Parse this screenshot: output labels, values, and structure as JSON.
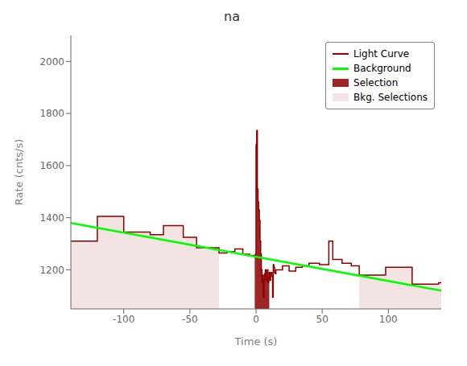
{
  "chart_data": {
    "type": "line",
    "title": "na",
    "xlabel": "Time (s)",
    "ylabel": "Rate (cnts/s)",
    "xlim": [
      -140,
      140
    ],
    "ylim": [
      1050,
      2100
    ],
    "xticks": [
      -100,
      -50,
      0,
      50,
      100
    ],
    "yticks": [
      1200,
      1400,
      1600,
      1800,
      2000
    ],
    "grid": false,
    "legend": "upper right",
    "series": [
      {
        "name": "Light Curve",
        "type": "step",
        "color": "#8B0000",
        "parts": [
          {
            "segments": [
              {
                "x1": -140,
                "x2": -120,
                "y": 1310
              },
              {
                "x1": -120,
                "x2": -100,
                "y": 1405
              },
              {
                "x1": -100,
                "x2": -80,
                "y": 1345
              },
              {
                "x1": -80,
                "x2": -70,
                "y": 1335
              },
              {
                "x1": -70,
                "x2": -55,
                "y": 1370
              },
              {
                "x1": -55,
                "x2": -45,
                "y": 1325
              },
              {
                "x1": -45,
                "x2": -28,
                "y": 1285
              },
              {
                "x1": -28,
                "x2": -22,
                "y": 1265
              },
              {
                "x1": -22,
                "x2": -16,
                "y": 1270
              },
              {
                "x1": -16,
                "x2": -10,
                "y": 1280
              },
              {
                "x1": -10,
                "x2": -5,
                "y": 1260
              },
              {
                "x1": -5,
                "x2": -1,
                "y": 1255
              }
            ]
          },
          {
            "x": [
              -1.0,
              -0.5,
              0.0,
              0.5,
              1.0,
              1.5,
              2.0,
              2.5,
              3.0,
              3.5,
              4.0,
              4.5,
              5.0,
              5.5,
              6.0,
              6.5,
              7.0,
              7.5,
              8.0,
              8.5,
              9.0,
              9.5,
              10.0,
              10.5,
              11.0,
              11.5,
              12.0,
              12.5,
              13.0,
              13.5,
              14.0,
              14.5,
              15.0
            ],
            "values": [
              1255,
              1260,
              1680,
              1735,
              1510,
              1460,
              1430,
              1390,
              1310,
              1260,
              1200,
              1150,
              1180,
              1095,
              1160,
              1185,
              1200,
              1175,
              1160,
              1200,
              1150,
              1170,
              1190,
              1160,
              1185,
              1190,
              1175,
              1095,
              1220,
              1210,
              1190,
              1185,
              1185
            ]
          },
          {
            "segments": [
              {
                "x1": 15,
                "x2": 20,
                "y": 1200
              },
              {
                "x1": 20,
                "x2": 25,
                "y": 1215
              },
              {
                "x1": 25,
                "x2": 30,
                "y": 1195
              },
              {
                "x1": 30,
                "x2": 35,
                "y": 1210
              },
              {
                "x1": 35,
                "x2": 40,
                "y": 1215
              },
              {
                "x1": 40,
                "x2": 48,
                "y": 1225
              },
              {
                "x1": 48,
                "x2": 55,
                "y": 1220
              },
              {
                "x1": 55,
                "x2": 58,
                "y": 1310
              },
              {
                "x1": 58,
                "x2": 65,
                "y": 1240
              },
              {
                "x1": 65,
                "x2": 72,
                "y": 1225
              },
              {
                "x1": 72,
                "x2": 78,
                "y": 1215
              },
              {
                "x1": 78,
                "x2": 98,
                "y": 1180
              },
              {
                "x1": 98,
                "x2": 118,
                "y": 1210
              },
              {
                "x1": 118,
                "x2": 138,
                "y": 1145
              },
              {
                "x1": 138,
                "x2": 140,
                "y": 1150
              }
            ]
          }
        ]
      },
      {
        "name": "Background",
        "type": "line",
        "color": "#00ff00",
        "x": [
          -140,
          140
        ],
        "values": [
          1380,
          1120
        ]
      },
      {
        "name": "Selection",
        "type": "area",
        "color": "#8B0000",
        "x_range": [
          -1,
          10
        ]
      },
      {
        "name": "Bkg. Selections",
        "type": "area",
        "color": "#e8c8c8",
        "x_ranges": [
          [
            -140,
            -28
          ],
          [
            78,
            140
          ]
        ]
      }
    ]
  }
}
